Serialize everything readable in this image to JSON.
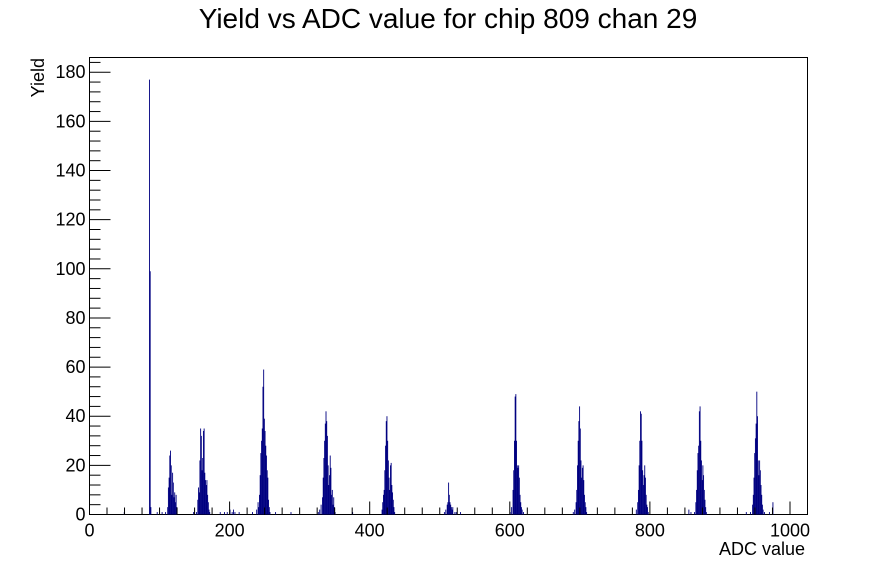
{
  "chart_data": {
    "type": "bar",
    "title": "Yield vs ADC value for chip 809 chan 29",
    "xlabel": "ADC value",
    "ylabel": "Yield",
    "xlim": [
      0,
      1025
    ],
    "ylim": [
      0,
      186
    ],
    "x_ticks": [
      0,
      200,
      400,
      600,
      800,
      1000
    ],
    "y_ticks": [
      0,
      20,
      40,
      60,
      80,
      100,
      120,
      140,
      160,
      180
    ],
    "x_minor_step": 25,
    "y_minor_step": 4,
    "grid": false,
    "bin_width": 1,
    "color": "#000080",
    "series": [
      {
        "values": [
          [
            49,
            1
          ],
          [
            85,
            177
          ],
          [
            86,
            99
          ],
          [
            87,
            3
          ],
          [
            96,
            1
          ],
          [
            103,
            1
          ],
          [
            108,
            1
          ],
          [
            111,
            3
          ],
          [
            112,
            11
          ],
          [
            113,
            15
          ],
          [
            114,
            24
          ],
          [
            115,
            26
          ],
          [
            116,
            20
          ],
          [
            117,
            8
          ],
          [
            118,
            17
          ],
          [
            119,
            13
          ],
          [
            120,
            7
          ],
          [
            121,
            9
          ],
          [
            122,
            5
          ],
          [
            123,
            8
          ],
          [
            124,
            3
          ],
          [
            148,
            1
          ],
          [
            152,
            1
          ],
          [
            154,
            6
          ],
          [
            155,
            11
          ],
          [
            156,
            9
          ],
          [
            157,
            22
          ],
          [
            158,
            35
          ],
          [
            159,
            32
          ],
          [
            160,
            18
          ],
          [
            161,
            23
          ],
          [
            162,
            34
          ],
          [
            163,
            35
          ],
          [
            164,
            17
          ],
          [
            165,
            14
          ],
          [
            166,
            12
          ],
          [
            167,
            14
          ],
          [
            168,
            8
          ],
          [
            169,
            5
          ],
          [
            170,
            2
          ],
          [
            171,
            1
          ],
          [
            186,
            1
          ],
          [
            192,
            1
          ],
          [
            196,
            1
          ],
          [
            200,
            2
          ],
          [
            203,
            1
          ],
          [
            205,
            2
          ],
          [
            207,
            1
          ],
          [
            213,
            1
          ],
          [
            232,
            1
          ],
          [
            238,
            2
          ],
          [
            240,
            5
          ],
          [
            241,
            3
          ],
          [
            242,
            8
          ],
          [
            243,
            16
          ],
          [
            244,
            25
          ],
          [
            245,
            30
          ],
          [
            246,
            35
          ],
          [
            247,
            52
          ],
          [
            248,
            59
          ],
          [
            249,
            39
          ],
          [
            250,
            34
          ],
          [
            251,
            28
          ],
          [
            252,
            24
          ],
          [
            253,
            18
          ],
          [
            254,
            15
          ],
          [
            255,
            6
          ],
          [
            256,
            3
          ],
          [
            257,
            1
          ],
          [
            265,
            1
          ],
          [
            287,
            1
          ],
          [
            326,
            1
          ],
          [
            328,
            2
          ],
          [
            330,
            4
          ],
          [
            332,
            7
          ],
          [
            333,
            15
          ],
          [
            334,
            23
          ],
          [
            335,
            30
          ],
          [
            336,
            37
          ],
          [
            337,
            42
          ],
          [
            338,
            38
          ],
          [
            339,
            32
          ],
          [
            340,
            20
          ],
          [
            341,
            12
          ],
          [
            342,
            16
          ],
          [
            343,
            24
          ],
          [
            344,
            19
          ],
          [
            345,
            8
          ],
          [
            346,
            10
          ],
          [
            347,
            4
          ],
          [
            348,
            7
          ],
          [
            349,
            3
          ],
          [
            350,
            1
          ],
          [
            375,
            1
          ],
          [
            417,
            2
          ],
          [
            418,
            5
          ],
          [
            419,
            8
          ],
          [
            420,
            10
          ],
          [
            421,
            18
          ],
          [
            422,
            28
          ],
          [
            423,
            38
          ],
          [
            424,
            40
          ],
          [
            425,
            30
          ],
          [
            426,
            22
          ],
          [
            427,
            15
          ],
          [
            428,
            10
          ],
          [
            429,
            20
          ],
          [
            430,
            21
          ],
          [
            431,
            12
          ],
          [
            432,
            9
          ],
          [
            433,
            6
          ],
          [
            434,
            3
          ],
          [
            435,
            1
          ],
          [
            506,
            1
          ],
          [
            508,
            2
          ],
          [
            510,
            4
          ],
          [
            511,
            5
          ],
          [
            512,
            13
          ],
          [
            513,
            8
          ],
          [
            514,
            5
          ],
          [
            515,
            4
          ],
          [
            516,
            3
          ],
          [
            517,
            2
          ],
          [
            518,
            3
          ],
          [
            521,
            1
          ],
          [
            523,
            1
          ],
          [
            529,
            1
          ],
          [
            600,
            1
          ],
          [
            602,
            3
          ],
          [
            604,
            10
          ],
          [
            605,
            18
          ],
          [
            606,
            30
          ],
          [
            607,
            48
          ],
          [
            608,
            49
          ],
          [
            609,
            30
          ],
          [
            610,
            20
          ],
          [
            611,
            19
          ],
          [
            612,
            20
          ],
          [
            613,
            15
          ],
          [
            614,
            8
          ],
          [
            615,
            5
          ],
          [
            616,
            3
          ],
          [
            617,
            2
          ],
          [
            619,
            1
          ],
          [
            690,
            1
          ],
          [
            692,
            2
          ],
          [
            694,
            5
          ],
          [
            695,
            10
          ],
          [
            696,
            20
          ],
          [
            697,
            30
          ],
          [
            698,
            38
          ],
          [
            699,
            44
          ],
          [
            700,
            35
          ],
          [
            701,
            22
          ],
          [
            702,
            15
          ],
          [
            703,
            19
          ],
          [
            704,
            20
          ],
          [
            705,
            14
          ],
          [
            706,
            8
          ],
          [
            707,
            5
          ],
          [
            708,
            3
          ],
          [
            709,
            1
          ],
          [
            780,
            2
          ],
          [
            782,
            5
          ],
          [
            783,
            10
          ],
          [
            784,
            20
          ],
          [
            785,
            30
          ],
          [
            786,
            42
          ],
          [
            787,
            41
          ],
          [
            788,
            30
          ],
          [
            789,
            18
          ],
          [
            790,
            12
          ],
          [
            791,
            16
          ],
          [
            792,
            20
          ],
          [
            793,
            15
          ],
          [
            794,
            8
          ],
          [
            795,
            4
          ],
          [
            796,
            3
          ],
          [
            797,
            1
          ],
          [
            855,
            2
          ],
          [
            858,
            1
          ],
          [
            863,
            1
          ],
          [
            865,
            5
          ],
          [
            866,
            10
          ],
          [
            867,
            18
          ],
          [
            868,
            25
          ],
          [
            869,
            28
          ],
          [
            870,
            42
          ],
          [
            871,
            44
          ],
          [
            872,
            30
          ],
          [
            873,
            22
          ],
          [
            874,
            14
          ],
          [
            875,
            20
          ],
          [
            876,
            16
          ],
          [
            877,
            10
          ],
          [
            878,
            6
          ],
          [
            879,
            3
          ],
          [
            880,
            1
          ],
          [
            937,
            1
          ],
          [
            943,
            1
          ],
          [
            946,
            4
          ],
          [
            947,
            8
          ],
          [
            948,
            15
          ],
          [
            949,
            25
          ],
          [
            950,
            31
          ],
          [
            951,
            37
          ],
          [
            952,
            50
          ],
          [
            953,
            40
          ],
          [
            954,
            22
          ],
          [
            955,
            16
          ],
          [
            956,
            22
          ],
          [
            957,
            18
          ],
          [
            958,
            12
          ],
          [
            959,
            8
          ],
          [
            960,
            4
          ],
          [
            961,
            2
          ],
          [
            963,
            1
          ],
          [
            970,
            1
          ],
          [
            975,
            5
          ]
        ]
      }
    ]
  }
}
